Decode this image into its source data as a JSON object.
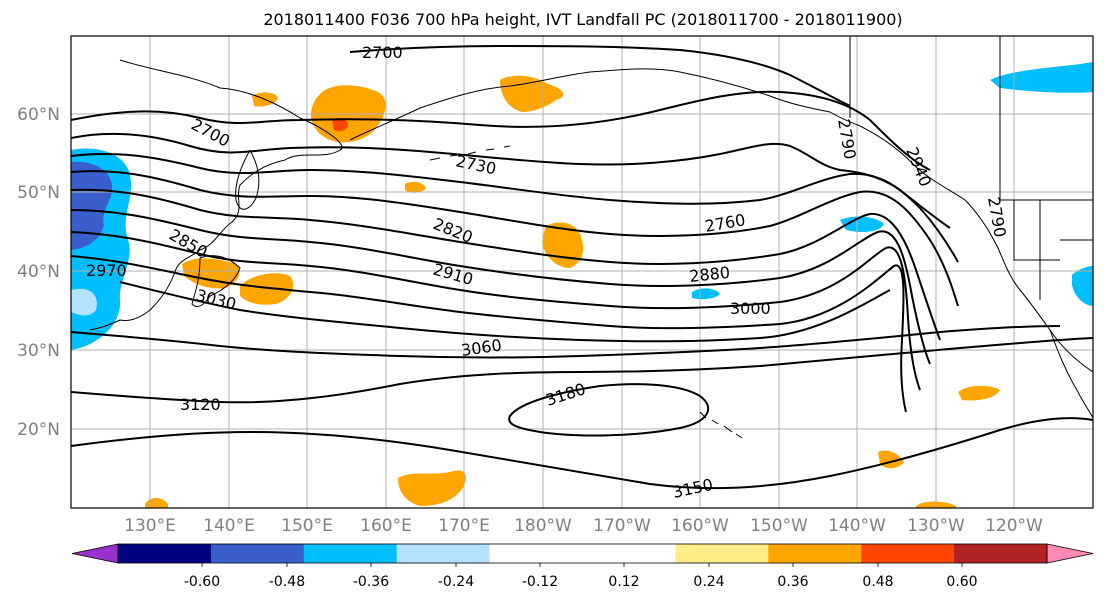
{
  "title": "2018011400 F036 700 hPa height, IVT Landfall PC (2018011700 - 2018011900)",
  "lat_labels": [
    "60°N",
    "50°N",
    "40°N",
    "30°N",
    "20°N"
  ],
  "lon_labels": [
    "130°E",
    "140°E",
    "150°E",
    "160°E",
    "170°E",
    "180°W",
    "170°W",
    "160°W",
    "150°W",
    "140°W",
    "130°W",
    "120°W"
  ],
  "contour_labels": [
    "2700",
    "2700",
    "2730",
    "2760",
    "2790",
    "2790",
    "2820",
    "2850",
    "2880",
    "2910",
    "2940",
    "2970",
    "3000",
    "3030",
    "3060",
    "3120",
    "3150",
    "3180"
  ],
  "colorbar": {
    "colors": [
      "#9932cc",
      "#000080",
      "#3a5fcd",
      "#00bfff",
      "#b2e2fd",
      "#ffffff",
      "#ffffff",
      "#ffee88",
      "#ffa500",
      "#ff4500",
      "#b22222",
      "#ff89b5"
    ],
    "ticks": [
      "-0.60",
      "-0.48",
      "-0.36",
      "-0.24",
      "-0.12",
      "0.12",
      "0.24",
      "0.36",
      "0.48",
      "0.60"
    ]
  },
  "colors": {
    "frame": "#000000",
    "grid": "#b0b0b0",
    "axis_label": "#808080",
    "positive_fill": "#ffa500",
    "strong_positive_fill": "#ff4500",
    "negative_fill": "#00bfff",
    "strong_negative_fill": "#3a5fcd"
  }
}
